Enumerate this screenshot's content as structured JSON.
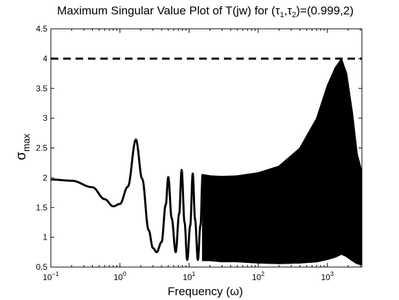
{
  "chart_data": {
    "type": "line",
    "title": "Maximum Singular Value Plot of T(jw) for (τ₁,τ₂)=(0.999,2)",
    "title_parts": {
      "prefix": "Maximum Singular Value Plot of T(jw) for (",
      "tau": "τ",
      "sub1": "1",
      "sep": ",",
      "sub2": "2",
      "suffix": ")=(0.999,2)"
    },
    "xlabel": "Frequency (ω)",
    "ylabel_symbol": "σ",
    "ylabel_subscript": "max",
    "x_scale": "log",
    "xlim": [
      0.1,
      3162
    ],
    "ylim": [
      0.5,
      4.5
    ],
    "x_ticks": [
      {
        "value": 0.1,
        "base": "10",
        "exp": "−1"
      },
      {
        "value": 1,
        "base": "10",
        "exp": "0"
      },
      {
        "value": 10,
        "base": "10",
        "exp": "1"
      },
      {
        "value": 100,
        "base": "10",
        "exp": "2"
      },
      {
        "value": 1000,
        "base": "10",
        "exp": "3"
      }
    ],
    "y_ticks": [
      "0.5",
      "1",
      "1.5",
      "2",
      "2.5",
      "3",
      "3.5",
      "4",
      "4.5"
    ],
    "grid": false,
    "line_color": "#000000",
    "series": [
      {
        "style": "solid",
        "x": [
          0.1,
          0.2,
          0.4,
          0.6,
          0.8,
          1.0,
          1.3,
          1.7,
          2.1,
          2.6,
          3.0,
          3.4,
          4.0,
          4.6,
          5.0,
          5.6,
          6.4,
          7.2,
          7.8,
          8.6,
          9.4,
          10.4,
          11.3,
          12.2,
          13.4,
          14.6,
          15.7
        ],
        "y": [
          1.97,
          1.95,
          1.84,
          1.64,
          1.52,
          1.56,
          1.85,
          2.64,
          1.98,
          1.12,
          0.82,
          0.75,
          0.92,
          1.55,
          2.01,
          1.32,
          0.75,
          1.4,
          2.13,
          1.25,
          0.62,
          1.2,
          2.07,
          1.3,
          0.62,
          1.2,
          2.06
        ]
      },
      {
        "style": "oscillation-envelope",
        "x": [
          15.7,
          20,
          30,
          50,
          100,
          200,
          400,
          700,
          1000,
          1300,
          1600,
          1900,
          2300,
          2700,
          3162
        ],
        "upper": [
          2.06,
          2.04,
          2.03,
          2.04,
          2.09,
          2.2,
          2.5,
          3.0,
          3.55,
          3.85,
          4.0,
          3.75,
          3.1,
          2.4,
          2.1
        ],
        "lower": [
          0.6,
          0.6,
          0.58,
          0.58,
          0.56,
          0.55,
          0.56,
          0.58,
          0.62,
          0.66,
          0.71,
          0.67,
          0.6,
          0.55,
          0.53
        ]
      },
      {
        "style": "dashed",
        "x": [
          0.1,
          3162
        ],
        "y": [
          4.0,
          4.0
        ]
      }
    ]
  }
}
